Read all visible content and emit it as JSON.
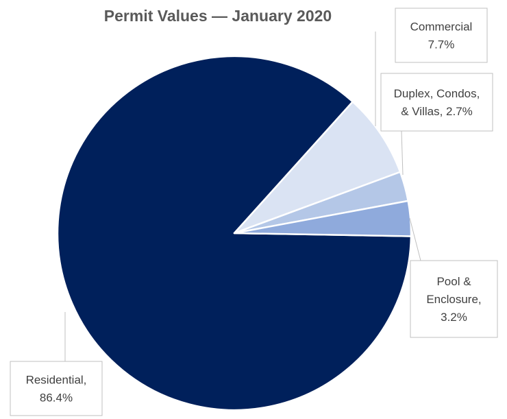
{
  "chart_data": {
    "type": "pie",
    "title": "Permit Values — January 2020",
    "slices": [
      {
        "name": "Residential",
        "value": 86.4,
        "label": [
          "Residential,",
          "86.4%"
        ],
        "color": "#00205b"
      },
      {
        "name": "Commercial",
        "value": 7.7,
        "label": [
          "Commercial",
          "7.7%"
        ],
        "color": "#dae3f3"
      },
      {
        "name": "Duplex, Condos, & Villas",
        "value": 2.7,
        "label": [
          "Duplex, Condos,",
          "& Villas, 2.7%"
        ],
        "color": "#b4c7e7"
      },
      {
        "name": "Pool & Enclosure",
        "value": 3.2,
        "label": [
          "Pool &",
          "Enclosure,",
          "3.2%"
        ],
        "color": "#8faadc"
      }
    ],
    "legend": "none",
    "data_labels": "outside with leader lines"
  }
}
